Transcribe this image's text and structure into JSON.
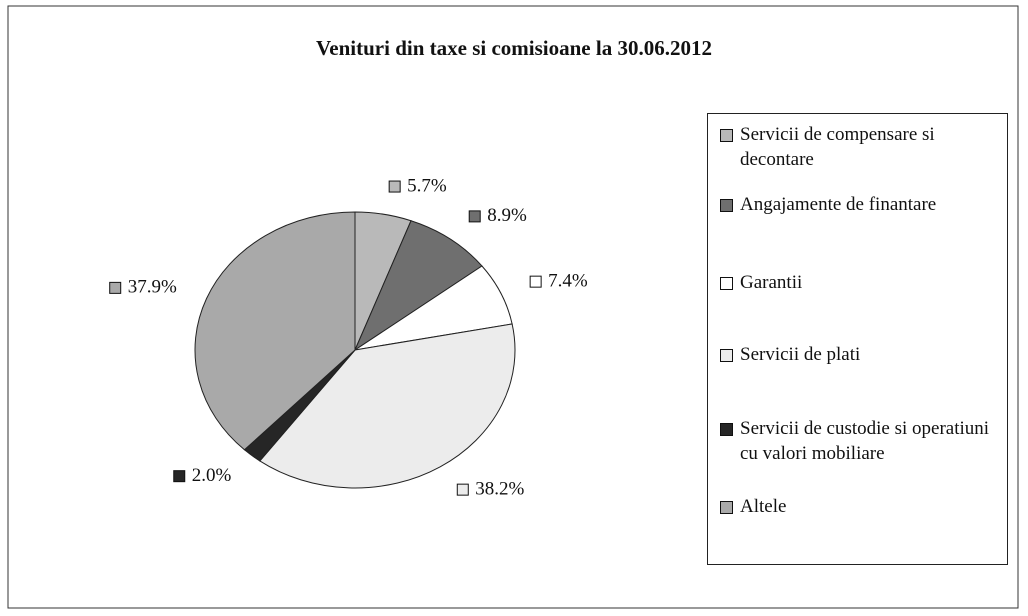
{
  "chart_data": {
    "type": "pie",
    "title": "Venituri din taxe si comisioane la 30.06.2012",
    "categories": [
      "Servicii de compensare si decontare",
      "Angajamente de finantare",
      "Garantii",
      "Servicii de plati",
      "Servicii de custodie si operatiuni cu valori mobiliare",
      "Altele"
    ],
    "values": [
      5.7,
      8.9,
      7.4,
      38.2,
      2.0,
      37.9
    ],
    "value_labels": [
      "5.7%",
      "8.9%",
      "7.4%",
      "38.2%",
      "2.0%",
      "37.9%"
    ],
    "colors": [
      "#b9b9b9",
      "#6f6f6f",
      "#ffffff",
      "#ececec",
      "#262626",
      "#a9a9a9"
    ],
    "legend": "right"
  }
}
